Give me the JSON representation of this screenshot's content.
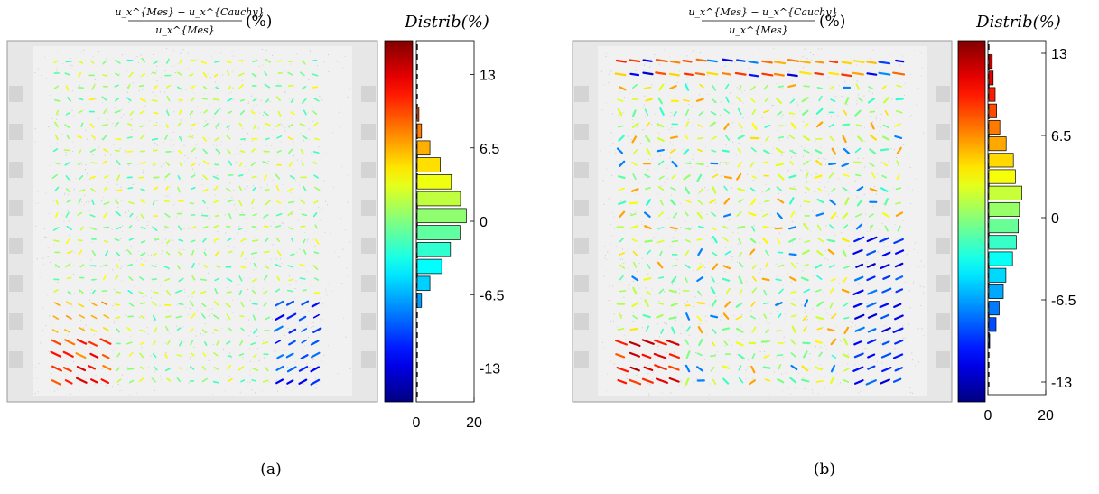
{
  "chart_data": [
    {
      "type": "quiver",
      "panel_label": "(a)",
      "title": {
        "numerator": "u_x^{Mes} − u_x^{Cauchy}",
        "denominator": "u_x^{Mes}",
        "suffix": "(%)"
      },
      "hist_title": "Distrib(%)",
      "colorbar": {
        "colormap": "jet",
        "range": [
          -16,
          16
        ]
      },
      "yticks": [
        13,
        6.5,
        0,
        -6.5,
        -13
      ],
      "xticks": [
        0,
        20
      ],
      "xlim": [
        0,
        20
      ],
      "ylim": [
        -16,
        16
      ],
      "histogram": {
        "bin_centers": [
          9.5,
          8.0,
          6.5,
          5.0,
          3.5,
          2.0,
          0.5,
          -1.0,
          -2.5,
          -4.0,
          -5.5,
          -7.0
        ],
        "counts": [
          0.6,
          1.5,
          4.4,
          8.0,
          11.8,
          15.0,
          17.0,
          14.8,
          11.5,
          8.5,
          4.4,
          1.5
        ]
      },
      "field_grid": {
        "rows": 26,
        "cols": 22
      },
      "strong_zones": "bottom-left (red/orange), bottom-right (blue)"
    },
    {
      "type": "quiver",
      "panel_label": "(b)",
      "title": {
        "numerator": "u_x^{Mes} − u_x^{Cauchy}",
        "denominator": "u_x^{Mes}",
        "suffix": "(%)"
      },
      "hist_title": "Distrib(%)",
      "colorbar": {
        "colormap": "jet",
        "range": [
          -14,
          14
        ]
      },
      "yticks": [
        13,
        6.5,
        0,
        -6.5,
        -13
      ],
      "xticks": [
        0,
        20
      ],
      "xlim": [
        0,
        20
      ],
      "ylim": [
        -14,
        14
      ],
      "histogram": {
        "bin_centers": [
          12.35,
          11.05,
          9.75,
          8.45,
          7.15,
          5.85,
          4.55,
          3.25,
          1.95,
          0.65,
          -0.65,
          -1.95,
          -3.25,
          -4.55,
          -5.85,
          -7.15,
          -8.45,
          -9.75
        ],
        "counts": [
          1.2,
          1.5,
          2.2,
          2.7,
          3.8,
          6.0,
          8.5,
          9.2,
          11.4,
          10.6,
          10.2,
          9.5,
          8.2,
          5.9,
          5.0,
          3.6,
          2.5,
          0.3
        ]
      },
      "field_grid": {
        "rows": 26,
        "cols": 22
      },
      "strong_zones": "top row (blue/red), bottom-left (red), right edge (blue)"
    }
  ]
}
